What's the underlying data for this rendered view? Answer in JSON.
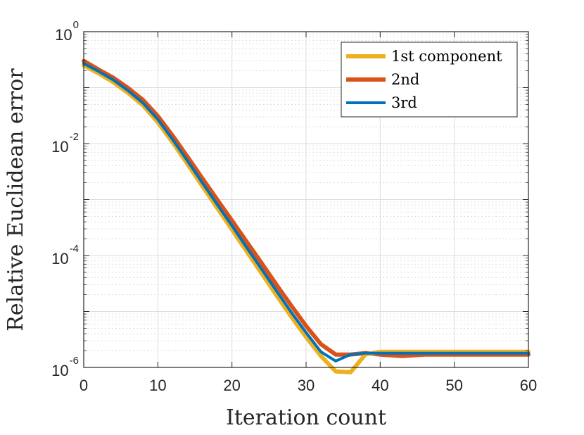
{
  "chart_data": {
    "type": "line",
    "title": "",
    "xlabel": "Iteration count",
    "ylabel": "Relative Euclidean error",
    "xlim": [
      0,
      60
    ],
    "ylim": [
      1e-06,
      1
    ],
    "yscale": "log",
    "grid": true,
    "minor_grid": true,
    "legend_placement": "top-right",
    "x_ticks": [
      {
        "value": 0,
        "label": "0"
      },
      {
        "value": 10,
        "label": "10"
      },
      {
        "value": 20,
        "label": "20"
      },
      {
        "value": 30,
        "label": "30"
      },
      {
        "value": 40,
        "label": "40"
      },
      {
        "value": 50,
        "label": "50"
      },
      {
        "value": 60,
        "label": "60"
      }
    ],
    "y_ticks": [
      {
        "value": 1,
        "base": "10",
        "exp": "0"
      },
      {
        "value": 0.01,
        "base": "10",
        "exp": "-2"
      },
      {
        "value": 0.0001,
        "base": "10",
        "exp": "-4"
      },
      {
        "value": 1e-06,
        "base": "10",
        "exp": "-6"
      }
    ],
    "series": [
      {
        "name": "1st component",
        "color": "#EDB120",
        "width": 6,
        "x": [
          0,
          2,
          4,
          6,
          8,
          10,
          12,
          14,
          16,
          18,
          20,
          22,
          24,
          26,
          28,
          30,
          32,
          34,
          36,
          38,
          40,
          45,
          50,
          55,
          60
        ],
        "y": [
          0.25,
          0.18,
          0.125,
          0.08,
          0.048,
          0.024,
          0.0105,
          0.0043,
          0.00175,
          0.00071,
          0.00029,
          0.000118,
          4.8e-05,
          1.95e-05,
          8.1e-06,
          3.5e-06,
          1.6e-06,
          8.5e-07,
          8.2e-07,
          1.7e-06,
          1.9e-06,
          1.9e-06,
          1.9e-06,
          1.9e-06,
          1.9e-06
        ]
      },
      {
        "name": "2nd",
        "color": "#D95319",
        "width": 6,
        "x": [
          0,
          2,
          4,
          6,
          8,
          10,
          12,
          14,
          16,
          18,
          20,
          22,
          24,
          26,
          28,
          30,
          32,
          34,
          36,
          38,
          40,
          43,
          46,
          50,
          55,
          60
        ],
        "y": [
          0.3,
          0.21,
          0.15,
          0.098,
          0.06,
          0.031,
          0.0138,
          0.0058,
          0.0024,
          0.001,
          0.00042,
          0.000175,
          7.3e-05,
          3e-05,
          1.27e-05,
          5.5e-06,
          2.6e-06,
          1.7e-06,
          1.7e-06,
          1.8e-06,
          1.7e-06,
          1.6e-06,
          1.7e-06,
          1.7e-06,
          1.7e-06,
          1.7e-06
        ]
      },
      {
        "name": "3rd",
        "color": "#0072BD",
        "width": 4,
        "x": [
          0,
          2,
          4,
          6,
          8,
          10,
          12,
          14,
          16,
          18,
          20,
          22,
          24,
          26,
          28,
          30,
          32,
          34,
          36,
          38,
          40,
          45,
          50,
          55,
          60
        ],
        "y": [
          0.27,
          0.195,
          0.137,
          0.088,
          0.053,
          0.027,
          0.0118,
          0.0049,
          0.002,
          0.00082,
          0.00034,
          0.000138,
          5.7e-05,
          2.33e-05,
          9.7e-06,
          4.2e-06,
          1.9e-06,
          1.3e-06,
          1.7e-06,
          1.8e-06,
          1.8e-06,
          1.8e-06,
          1.8e-06,
          1.8e-06,
          1.8e-06
        ]
      }
    ]
  }
}
